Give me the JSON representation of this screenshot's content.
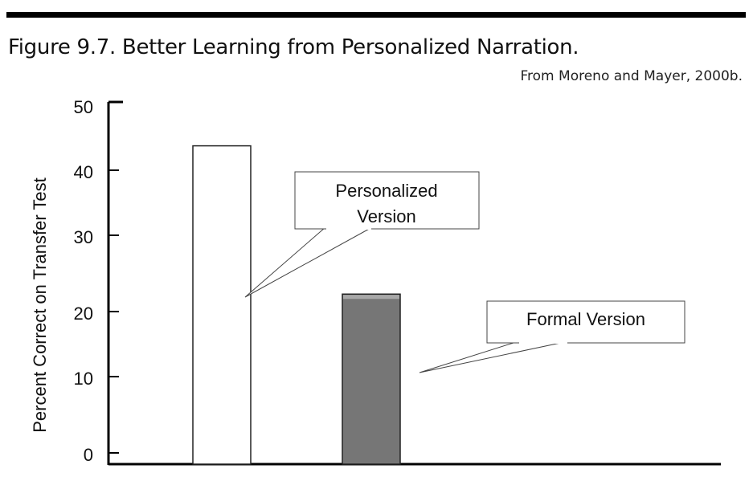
{
  "figure": {
    "title": "Figure 9.7.  Better Learning from Personalized Narration.",
    "source": "From Moreno and Mayer, 2000b."
  },
  "chart_data": {
    "type": "bar",
    "categories": [
      "Personalized Version",
      "Formal Version"
    ],
    "values": [
      44,
      22.5
    ],
    "colors": [
      "#ffffff",
      "#767676"
    ],
    "ylabel": "Percent Correct on Transfer Test",
    "xlabel": "",
    "ylim": [
      0,
      50
    ],
    "yticks": [
      0,
      10,
      20,
      30,
      40,
      50
    ],
    "grid": false,
    "callouts": [
      {
        "lines": [
          "Personalized",
          "Version"
        ],
        "category": "Personalized Version"
      },
      {
        "lines": [
          "Formal Version"
        ],
        "category": "Formal Version"
      }
    ]
  }
}
